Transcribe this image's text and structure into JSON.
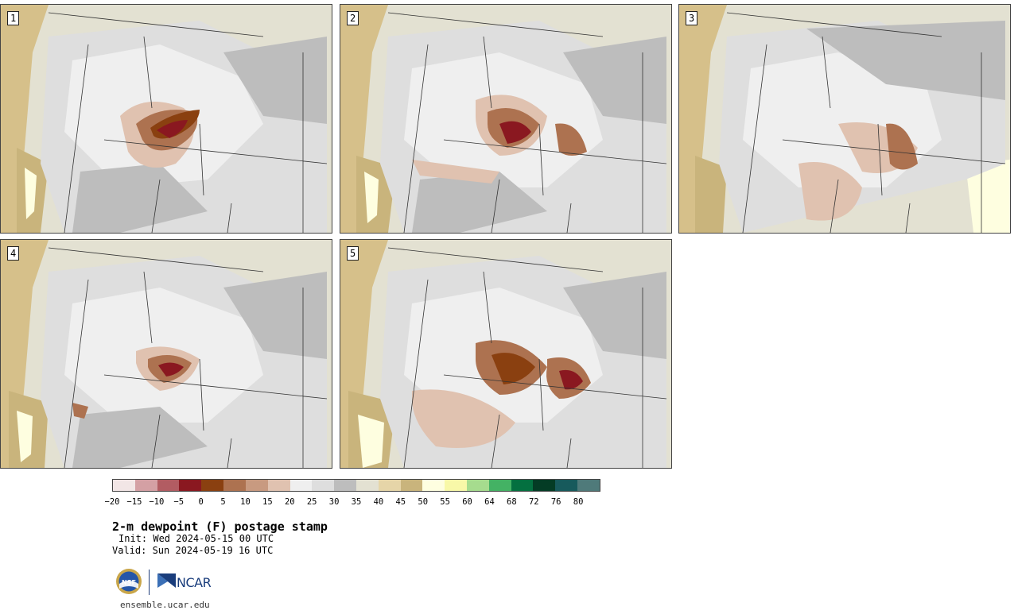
{
  "panels": [
    {
      "label": "1"
    },
    {
      "label": "2"
    },
    {
      "label": "3"
    },
    {
      "label": "4"
    },
    {
      "label": "5"
    }
  ],
  "colorbar": {
    "colors": [
      "#f2e6e6",
      "#d4a0a4",
      "#b25c62",
      "#8a1820",
      "#8a4010",
      "#ad7250",
      "#c89a80",
      "#e0c2b0",
      "#efefef",
      "#dedede",
      "#bdbdbd",
      "#e3e1d2",
      "#e6d5a8",
      "#c9b47c",
      "#fefee0",
      "#f8f8a8",
      "#a6dc8e",
      "#44b264",
      "#047040",
      "#043c25",
      "#175a5c",
      "#4f7a7a"
    ],
    "tick_labels": [
      "−20",
      "−15",
      "−10",
      "−5",
      "0",
      "5",
      "10",
      "15",
      "20",
      "25",
      "30",
      "35",
      "40",
      "45",
      "50",
      "55",
      "60",
      "64",
      "68",
      "72",
      "76",
      "80"
    ]
  },
  "title": "2-m dewpoint (F) postage stamp",
  "init": "Init: Wed 2024-05-15 00 UTC",
  "valid": "Valid: Sun 2024-05-19 16 UTC",
  "logos": {
    "ncar": "NCAR",
    "nsf": "NSF"
  },
  "site": "ensemble.ucar.edu"
}
